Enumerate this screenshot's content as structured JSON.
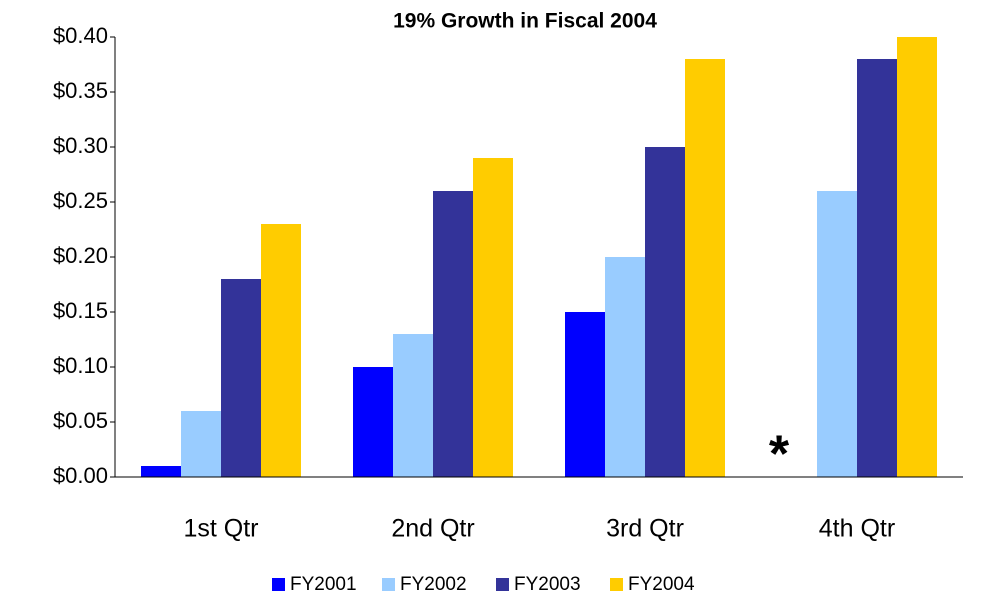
{
  "chart_data": {
    "type": "bar",
    "title": "19% Growth in Fiscal 2004",
    "categories": [
      "1st Qtr",
      "2nd Qtr",
      "3rd Qtr",
      "4th Qtr"
    ],
    "series": [
      {
        "name": "FY2001",
        "color": "#0000ff",
        "values": [
          0.01,
          0.1,
          0.15,
          null
        ]
      },
      {
        "name": "FY2002",
        "color": "#99ccff",
        "values": [
          0.06,
          0.13,
          0.2,
          0.26
        ]
      },
      {
        "name": "FY2003",
        "color": "#333399",
        "values": [
          0.18,
          0.26,
          0.3,
          0.38
        ]
      },
      {
        "name": "FY2004",
        "color": "#ffcc00",
        "values": [
          0.23,
          0.29,
          0.38,
          0.4
        ]
      }
    ],
    "annotation": "*",
    "ylim": [
      0,
      0.4
    ],
    "yticks": [
      {
        "value": 0,
        "label": "$0.00"
      },
      {
        "value": 0.05,
        "label": "$0.05"
      },
      {
        "value": 0.1,
        "label": "$0.10"
      },
      {
        "value": 0.15,
        "label": "$0.15"
      },
      {
        "value": 0.2,
        "label": "$0.20"
      },
      {
        "value": 0.25,
        "label": "$0.25"
      },
      {
        "value": 0.3,
        "label": "$0.30"
      },
      {
        "value": 0.35,
        "label": "$0.35"
      },
      {
        "value": 0.4,
        "label": "$0.40"
      }
    ],
    "grid": false,
    "legend": "bottom"
  }
}
